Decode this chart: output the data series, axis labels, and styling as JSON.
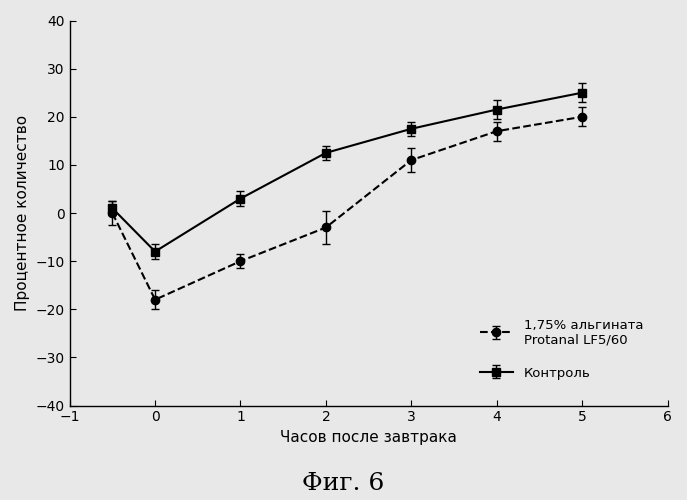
{
  "alginate_x": [
    -0.5,
    0,
    1,
    2,
    3,
    4,
    5
  ],
  "alginate_y": [
    0,
    -18,
    -10,
    -3,
    11,
    17,
    20
  ],
  "alginate_yerr": [
    2.5,
    2.0,
    1.5,
    3.5,
    2.5,
    2.0,
    2.0
  ],
  "control_x": [
    -0.5,
    0,
    1,
    2,
    3,
    4,
    5
  ],
  "control_y": [
    1,
    -8,
    3,
    12.5,
    17.5,
    21.5,
    25
  ],
  "control_yerr": [
    1.5,
    1.5,
    1.5,
    1.5,
    1.5,
    2.0,
    2.0
  ],
  "xlabel": "Часов после завтрака",
  "ylabel": "Процентное количество",
  "xlim": [
    -1,
    6
  ],
  "ylim": [
    -40,
    40
  ],
  "yticks": [
    -40,
    -30,
    -20,
    -10,
    0,
    10,
    20,
    30,
    40
  ],
  "xticks": [
    -1,
    0,
    1,
    2,
    3,
    4,
    5,
    6
  ],
  "legend_alginate": "1,75% альгината\nProtanal LF5/60",
  "legend_control": "Контроль",
  "figure_title": "Фиг. 6",
  "line_color": "#000000",
  "background_color": "#e8e8e8",
  "capsize": 3,
  "marker_size": 6,
  "linewidth": 1.5
}
